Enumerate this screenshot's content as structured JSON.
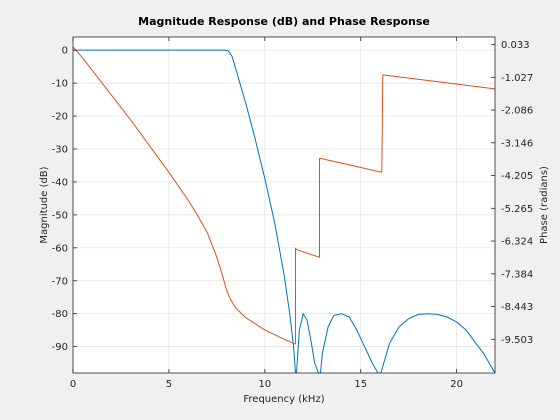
{
  "chart_data": {
    "type": "line",
    "title": "Magnitude Response (dB) and Phase Response",
    "xlabel": "Frequency (kHz)",
    "ylabel_left": "Magnitude (dB)",
    "ylabel_right": "Phase (radians)",
    "xlim": [
      0,
      22
    ],
    "ylim_left": [
      -98,
      4
    ],
    "ylim_right": [
      -10.593,
      0.277
    ],
    "xticks": [
      0,
      5,
      10,
      15,
      20
    ],
    "xtick_labels": [
      "0",
      "5",
      "10",
      "15",
      "20"
    ],
    "yticks_left": [
      0,
      -10,
      -20,
      -30,
      -40,
      -50,
      -60,
      -70,
      -80,
      -90
    ],
    "ytick_labels_left": [
      "0",
      "-10",
      "-20",
      "-30",
      "-40",
      "-50",
      "-60",
      "-70",
      "-80",
      "-90"
    ],
    "yticks_right": [
      0.033,
      -1.027,
      -2.086,
      -3.146,
      -4.205,
      -5.265,
      -6.324,
      -7.384,
      -8.443,
      -9.503
    ],
    "ytick_labels_right": [
      "0.033",
      "-1.027",
      "-2.086",
      "-3.146",
      "-4.205",
      "-5.265",
      "-6.324",
      "-7.384",
      "-8.443",
      "-9.503"
    ],
    "grid": true,
    "colors": {
      "magnitude": "#0072bd",
      "phase": "#d95319",
      "axes": "#262626",
      "grid": "#e0e0e0"
    },
    "series": [
      {
        "axis": "left",
        "color": "#0072bd",
        "x": [
          0,
          2,
          4,
          6,
          7,
          7.5,
          7.9,
          8.1,
          8.3,
          8.6,
          9,
          9.5,
          10,
          10.5,
          11,
          11.3,
          11.5,
          11.6,
          11.65,
          11.8,
          12,
          12.2,
          12.4,
          12.6,
          12.8,
          12.9,
          13.0,
          13.3,
          13.6,
          14,
          14.4,
          14.8,
          15.2,
          15.6,
          15.9,
          16.05,
          16.2,
          16.5,
          17,
          17.5,
          18,
          18.5,
          19,
          19.5,
          20,
          20.5,
          21,
          21.4,
          21.7,
          22
        ],
        "y": [
          0,
          0,
          0,
          0,
          0,
          0,
          0,
          -0.2,
          -2,
          -8,
          -16,
          -27,
          -39,
          -52,
          -68,
          -80,
          -90,
          -98,
          -98,
          -85,
          -80,
          -82,
          -88,
          -95,
          -98,
          -98,
          -92,
          -84,
          -80.5,
          -80,
          -81,
          -85,
          -90,
          -95,
          -98,
          -98,
          -95,
          -89,
          -84,
          -81.5,
          -80.2,
          -80,
          -80.2,
          -81,
          -82.5,
          -85,
          -89,
          -92,
          -95,
          -98
        ]
      },
      {
        "axis": "right",
        "color": "#d95319",
        "x": [
          0,
          0.5,
          1,
          2,
          3,
          4,
          5,
          6,
          6.5,
          7,
          7.5,
          7.8,
          8.0,
          8.2,
          8.5,
          9,
          9.5,
          10,
          10.5,
          11,
          11.55,
          11.6,
          11.6,
          11.65,
          12.85,
          12.85,
          12.9,
          16.1,
          16.1,
          16.15,
          22
        ],
        "y": [
          -0.04,
          -0.4,
          -0.8,
          -1.6,
          -2.4,
          -3.25,
          -4.1,
          -5.0,
          -5.5,
          -6.05,
          -6.85,
          -7.45,
          -7.9,
          -8.2,
          -8.5,
          -8.8,
          -9.0,
          -9.2,
          -9.35,
          -9.5,
          -9.65,
          -9.65,
          -6.55,
          -6.6,
          -6.85,
          -3.65,
          -3.65,
          -4.1,
          -4.1,
          -0.95,
          -1.4
        ]
      }
    ]
  }
}
